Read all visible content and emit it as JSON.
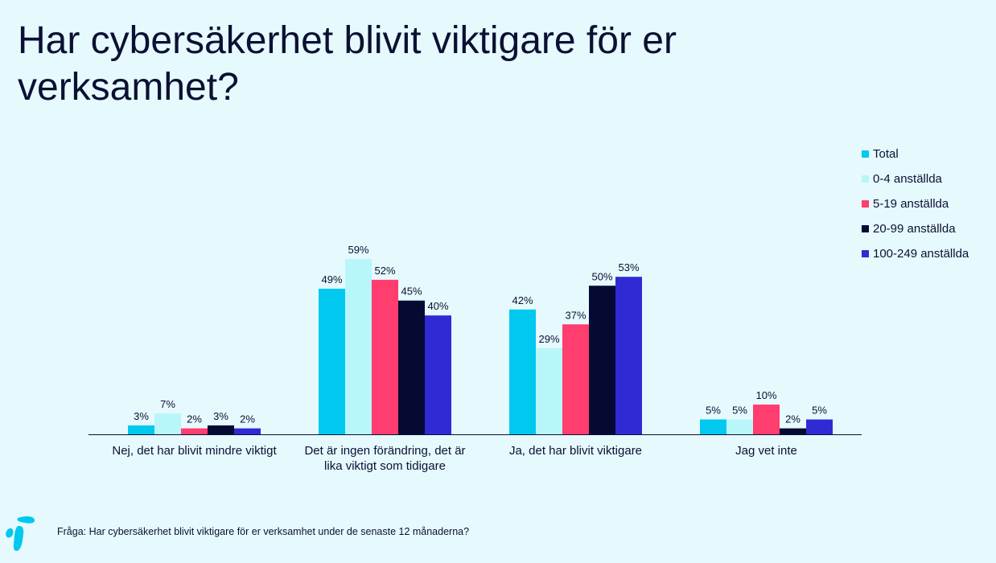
{
  "title": "Har cybersäkerhet blivit viktigare för er verksamhet?",
  "footnote": "Fråga: Har cybersäkerhet blivit viktigare för er verksamhet under de senaste 12 månaderna?",
  "colors": {
    "background": "#e6f9fd",
    "text": "#0b1033",
    "axis": "#0b1033"
  },
  "icons": {
    "logo": "telia-pebble-logo-icon"
  },
  "chart_data": {
    "type": "bar",
    "categories": [
      "Nej, det har blivit mindre viktigt",
      "Det är ingen förändring, det är lika viktigt som tidigare",
      "Ja, det har blivit viktigare",
      "Jag vet inte"
    ],
    "series": [
      {
        "name": "Total",
        "color": "#00c8ef",
        "values": [
          3,
          49,
          42,
          5
        ],
        "labels": [
          "3%",
          "49%",
          "42%",
          "5%"
        ]
      },
      {
        "name": "0-4 anställda",
        "color": "#b8f6fa",
        "values": [
          7,
          59,
          29,
          5
        ],
        "labels": [
          "7%",
          "59%",
          "29%",
          "5%"
        ]
      },
      {
        "name": "5-19 anställda",
        "color": "#ff3d6e",
        "values": [
          2,
          52,
          37,
          10
        ],
        "labels": [
          "2%",
          "52%",
          "37%",
          "10%"
        ]
      },
      {
        "name": "20-99 anställda",
        "color": "#050a33",
        "values": [
          3,
          45,
          50,
          2
        ],
        "labels": [
          "3%",
          "45%",
          "50%",
          "2%"
        ]
      },
      {
        "name": "100-249 anställda",
        "color": "#2f2ad4",
        "values": [
          2,
          40,
          53,
          5
        ],
        "labels": [
          "2%",
          "40%",
          "53%",
          "5%"
        ]
      }
    ],
    "ylim": [
      0,
      59
    ],
    "grid": false,
    "legend": "right"
  }
}
